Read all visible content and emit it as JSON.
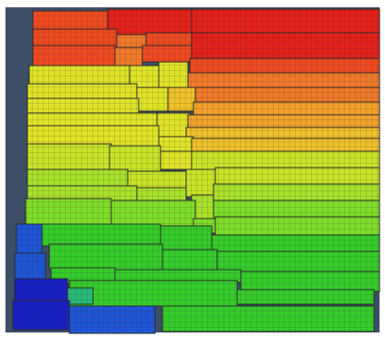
{
  "scene": {
    "description_kind": "fem-mesh-contour-plot",
    "colors": {
      "background": "#3d4f67",
      "border": "#ffffff",
      "red": "#e3211a",
      "red_orange": "#ef4a20",
      "orange": "#f07a2a",
      "orange_yellow": "#f2a12a",
      "yellow_orange": "#efc12a",
      "yellow": "#dfe327",
      "yellow_green": "#c8e327",
      "light_green": "#a8e02b",
      "green_yellow": "#7fdd2a",
      "green": "#35cc2a",
      "cyan_green": "#28b978",
      "blue": "#1f55d6",
      "dark_blue": "#1820c4",
      "mesh_line": "#2a2a2a"
    }
  }
}
